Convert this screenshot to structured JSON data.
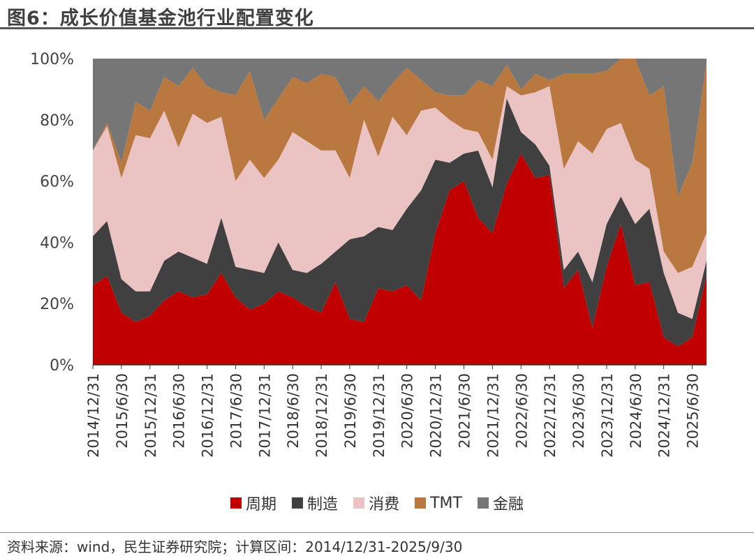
{
  "title": "图6：成长价值基金池行业配置变化",
  "footer": "资料来源：wind，民生证券研究院；计算区间：2014/12/31-2025/9/30",
  "chart_data": {
    "type": "area",
    "stacked": true,
    "title": "",
    "xlabel": "",
    "ylabel": "",
    "ylim": [
      0,
      100
    ],
    "y_ticks": [
      "0%",
      "20%",
      "40%",
      "60%",
      "80%",
      "100%"
    ],
    "legend_placement": "bottom",
    "grid": false,
    "categories": [
      "2014/12/31",
      "2015/3/31",
      "2015/6/30",
      "2015/9/30",
      "2015/12/31",
      "2016/3/31",
      "2016/6/30",
      "2016/9/30",
      "2016/12/31",
      "2017/3/31",
      "2017/6/30",
      "2017/9/30",
      "2017/12/31",
      "2018/3/31",
      "2018/6/30",
      "2018/9/30",
      "2018/12/31",
      "2019/3/31",
      "2019/6/30",
      "2019/9/30",
      "2019/12/31",
      "2020/3/31",
      "2020/6/30",
      "2020/9/30",
      "2020/12/31",
      "2021/3/31",
      "2021/6/30",
      "2021/9/30",
      "2021/12/31",
      "2022/3/31",
      "2022/6/30",
      "2022/9/30",
      "2022/12/31",
      "2023/3/31",
      "2023/6/30",
      "2023/9/30",
      "2023/12/31",
      "2024/3/31",
      "2024/6/30",
      "2024/9/30",
      "2024/12/31",
      "2025/3/31",
      "2025/6/30",
      "2025/9/30"
    ],
    "x_tick_labels": [
      "2014/12/31",
      "2015/6/30",
      "2015/12/31",
      "2016/6/30",
      "2016/12/31",
      "2017/6/30",
      "2017/12/31",
      "2018/6/30",
      "2018/12/31",
      "2019/6/30",
      "2019/12/31",
      "2020/6/30",
      "2020/12/31",
      "2021/6/30",
      "2021/12/31",
      "2022/6/30",
      "2022/12/31",
      "2023/6/30",
      "2023/12/31",
      "2024/6/30",
      "2024/12/31",
      "2025/6/30"
    ],
    "series": [
      {
        "name": "周期",
        "color": "#C00000",
        "values": [
          26,
          29,
          17,
          14,
          16,
          21,
          24,
          22,
          23,
          30,
          22,
          18,
          20,
          24,
          22,
          19,
          17,
          27,
          15,
          14,
          25,
          24,
          26,
          21,
          43,
          57,
          60,
          48,
          43,
          59,
          69,
          61,
          62,
          25,
          31,
          12,
          32,
          46,
          26,
          27,
          9,
          6,
          9,
          29
        ]
      },
      {
        "name": "制造",
        "color": "#404040",
        "values": [
          16,
          18,
          11,
          10,
          8,
          13,
          13,
          13,
          10,
          18,
          10,
          13,
          10,
          16,
          9,
          11,
          16,
          10,
          26,
          28,
          20,
          20,
          25,
          36,
          24,
          9,
          9,
          22,
          15,
          28,
          7,
          11,
          3,
          6,
          6,
          15,
          14,
          9,
          20,
          24,
          21,
          11,
          6,
          5
        ]
      },
      {
        "name": "消费",
        "color": "#EBC3C3",
        "values": [
          28,
          31,
          33,
          51,
          50,
          49,
          34,
          47,
          46,
          33,
          28,
          36,
          31,
          27,
          45,
          43,
          37,
          33,
          20,
          38,
          23,
          37,
          24,
          26,
          17,
          14,
          8,
          6,
          9,
          4,
          12,
          17,
          26,
          33,
          36,
          42,
          31,
          24,
          21,
          13,
          7,
          13,
          17,
          9
        ]
      },
      {
        "name": "TMT",
        "color": "#B87840",
        "values": [
          0,
          1,
          5,
          11,
          9,
          11,
          20,
          15,
          12,
          8,
          28,
          29,
          19,
          20,
          18,
          19,
          25,
          24,
          24,
          11,
          18,
          11,
          22,
          10,
          5,
          8,
          11,
          17,
          24,
          7,
          2,
          6,
          2,
          31,
          22,
          26,
          19,
          21,
          33,
          24,
          54,
          25,
          34,
          56
        ]
      },
      {
        "name": "金融",
        "color": "#767676",
        "values": [
          30,
          21,
          34,
          14,
          17,
          6,
          9,
          3,
          9,
          11,
          12,
          4,
          20,
          13,
          6,
          8,
          5,
          6,
          15,
          9,
          14,
          8,
          3,
          7,
          11,
          12,
          12,
          7,
          9,
          2,
          10,
          5,
          7,
          5,
          5,
          5,
          4,
          0,
          0,
          12,
          9,
          45,
          34,
          1
        ]
      }
    ]
  }
}
